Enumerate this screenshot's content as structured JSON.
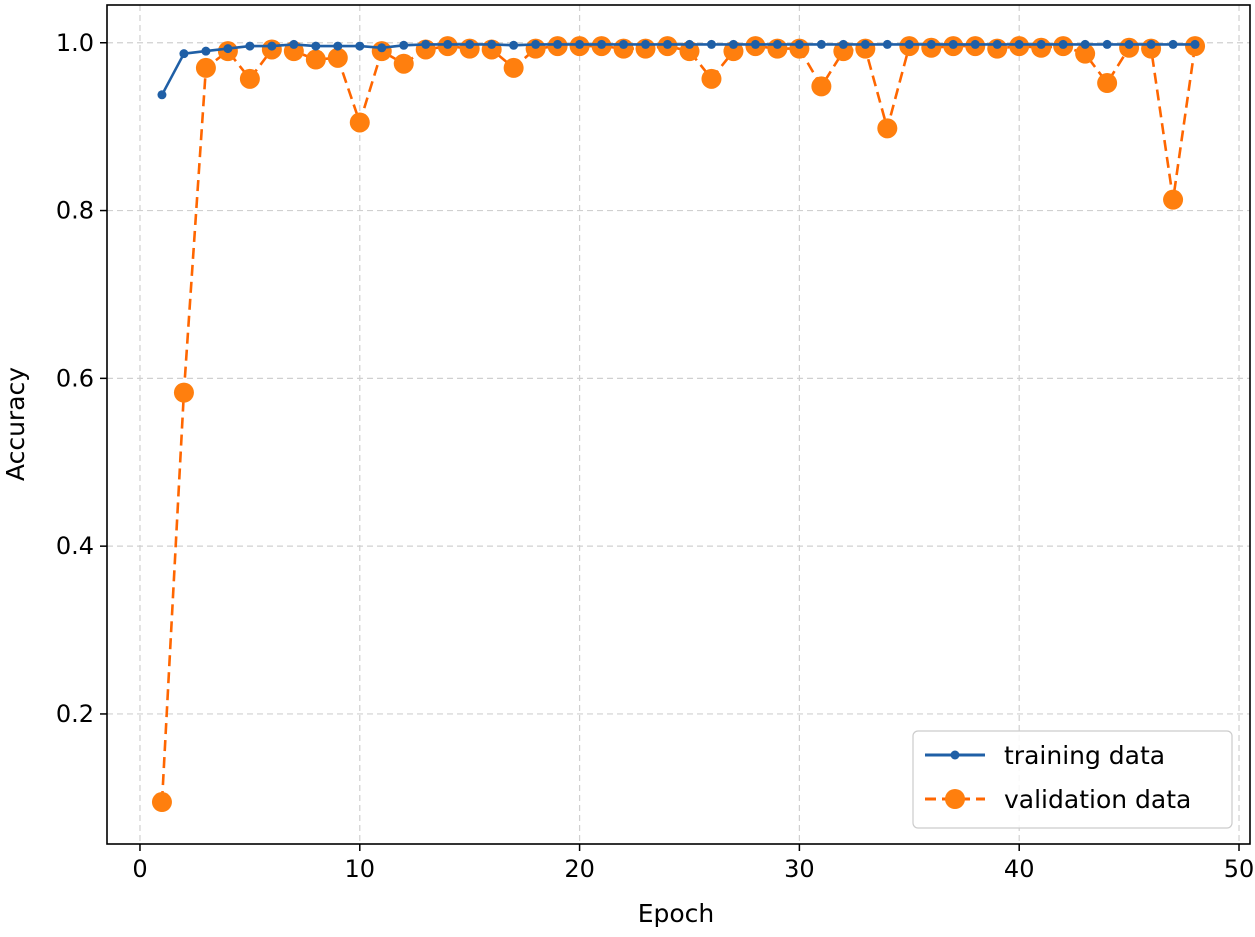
{
  "chart_data": {
    "type": "line",
    "title": "",
    "xlabel": "Epoch",
    "ylabel": "Accuracy",
    "xlim": [
      -1.5,
      50.5
    ],
    "ylim": [
      0.045,
      1.045
    ],
    "xticks": [
      0,
      10,
      20,
      30,
      40,
      50
    ],
    "yticks": [
      0.2,
      0.4,
      0.6,
      0.8,
      1.0
    ],
    "xtick_labels": [
      "0",
      "10",
      "20",
      "30",
      "40",
      "50"
    ],
    "ytick_labels": [
      "0.2",
      "0.4",
      "0.6",
      "0.8",
      "1.0"
    ],
    "grid": true,
    "legend_position": "lower-right",
    "x": [
      1,
      2,
      3,
      4,
      5,
      6,
      7,
      8,
      9,
      10,
      11,
      12,
      13,
      14,
      15,
      16,
      17,
      18,
      19,
      20,
      21,
      22,
      23,
      24,
      25,
      26,
      27,
      28,
      29,
      30,
      31,
      32,
      33,
      34,
      35,
      36,
      37,
      38,
      39,
      40,
      41,
      42,
      43,
      44,
      45,
      46,
      47,
      48
    ],
    "series": [
      {
        "name": "training data",
        "color": "#1f5fa6",
        "line_style": "solid",
        "marker": "small-dot",
        "values": [
          0.938,
          0.987,
          0.99,
          0.993,
          0.996,
          0.996,
          0.998,
          0.996,
          0.996,
          0.996,
          0.994,
          0.997,
          0.998,
          0.998,
          0.998,
          0.998,
          0.997,
          0.998,
          0.998,
          0.998,
          0.998,
          0.998,
          0.998,
          0.998,
          0.998,
          0.998,
          0.998,
          0.998,
          0.998,
          0.998,
          0.998,
          0.998,
          0.998,
          0.998,
          0.998,
          0.998,
          0.998,
          0.998,
          0.998,
          0.998,
          0.998,
          0.998,
          0.998,
          0.998,
          0.998,
          0.998,
          0.998,
          0.998
        ]
      },
      {
        "name": "validation data",
        "color": "#ff7f0e",
        "line_color": "#ff6600",
        "line_style": "dashed",
        "marker": "large-dot",
        "values": [
          0.095,
          0.583,
          0.97,
          0.99,
          0.957,
          0.992,
          0.99,
          0.98,
          0.982,
          0.905,
          0.99,
          0.975,
          0.992,
          0.996,
          0.993,
          0.992,
          0.97,
          0.993,
          0.996,
          0.996,
          0.996,
          0.993,
          0.993,
          0.996,
          0.99,
          0.957,
          0.99,
          0.996,
          0.993,
          0.993,
          0.948,
          0.99,
          0.993,
          0.898,
          0.996,
          0.994,
          0.996,
          0.996,
          0.993,
          0.996,
          0.994,
          0.996,
          0.987,
          0.952,
          0.994,
          0.993,
          0.813,
          0.996
        ]
      }
    ]
  }
}
